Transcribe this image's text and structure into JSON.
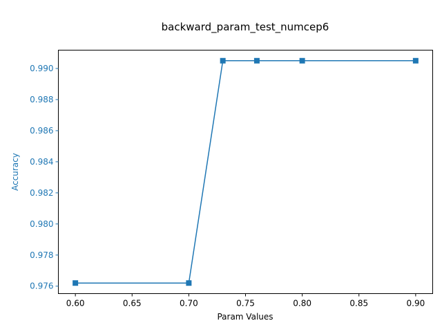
{
  "chart_data": {
    "type": "line",
    "title": "backward_param_test_numcep6",
    "xlabel": "Param Values",
    "ylabel": "Accuracy",
    "xlim": [
      0.585,
      0.915
    ],
    "ylim": [
      0.97552,
      0.99118
    ],
    "x_ticks": [
      {
        "value": 0.6,
        "label": "0.60"
      },
      {
        "value": 0.65,
        "label": "0.65"
      },
      {
        "value": 0.7,
        "label": "0.70"
      },
      {
        "value": 0.75,
        "label": "0.75"
      },
      {
        "value": 0.8,
        "label": "0.80"
      },
      {
        "value": 0.85,
        "label": "0.85"
      },
      {
        "value": 0.9,
        "label": "0.90"
      }
    ],
    "y_ticks": [
      {
        "value": 0.976,
        "label": "0.976"
      },
      {
        "value": 0.978,
        "label": "0.978"
      },
      {
        "value": 0.98,
        "label": "0.980"
      },
      {
        "value": 0.982,
        "label": "0.982"
      },
      {
        "value": 0.984,
        "label": "0.984"
      },
      {
        "value": 0.986,
        "label": "0.986"
      },
      {
        "value": 0.988,
        "label": "0.988"
      },
      {
        "value": 0.99,
        "label": "0.990"
      }
    ],
    "grid": false,
    "series": [
      {
        "marker": "square",
        "color": "#1f77b4",
        "x": [
          0.6,
          0.7,
          0.73,
          0.76,
          0.8,
          0.9
        ],
        "y": [
          0.9762,
          0.9762,
          0.9905,
          0.9905,
          0.9905,
          0.9905
        ]
      }
    ],
    "colors": {
      "line": "#1f77b4",
      "ylabel": "#1f77b4",
      "ytick": "#1f77b4",
      "axis": "#000000"
    }
  }
}
